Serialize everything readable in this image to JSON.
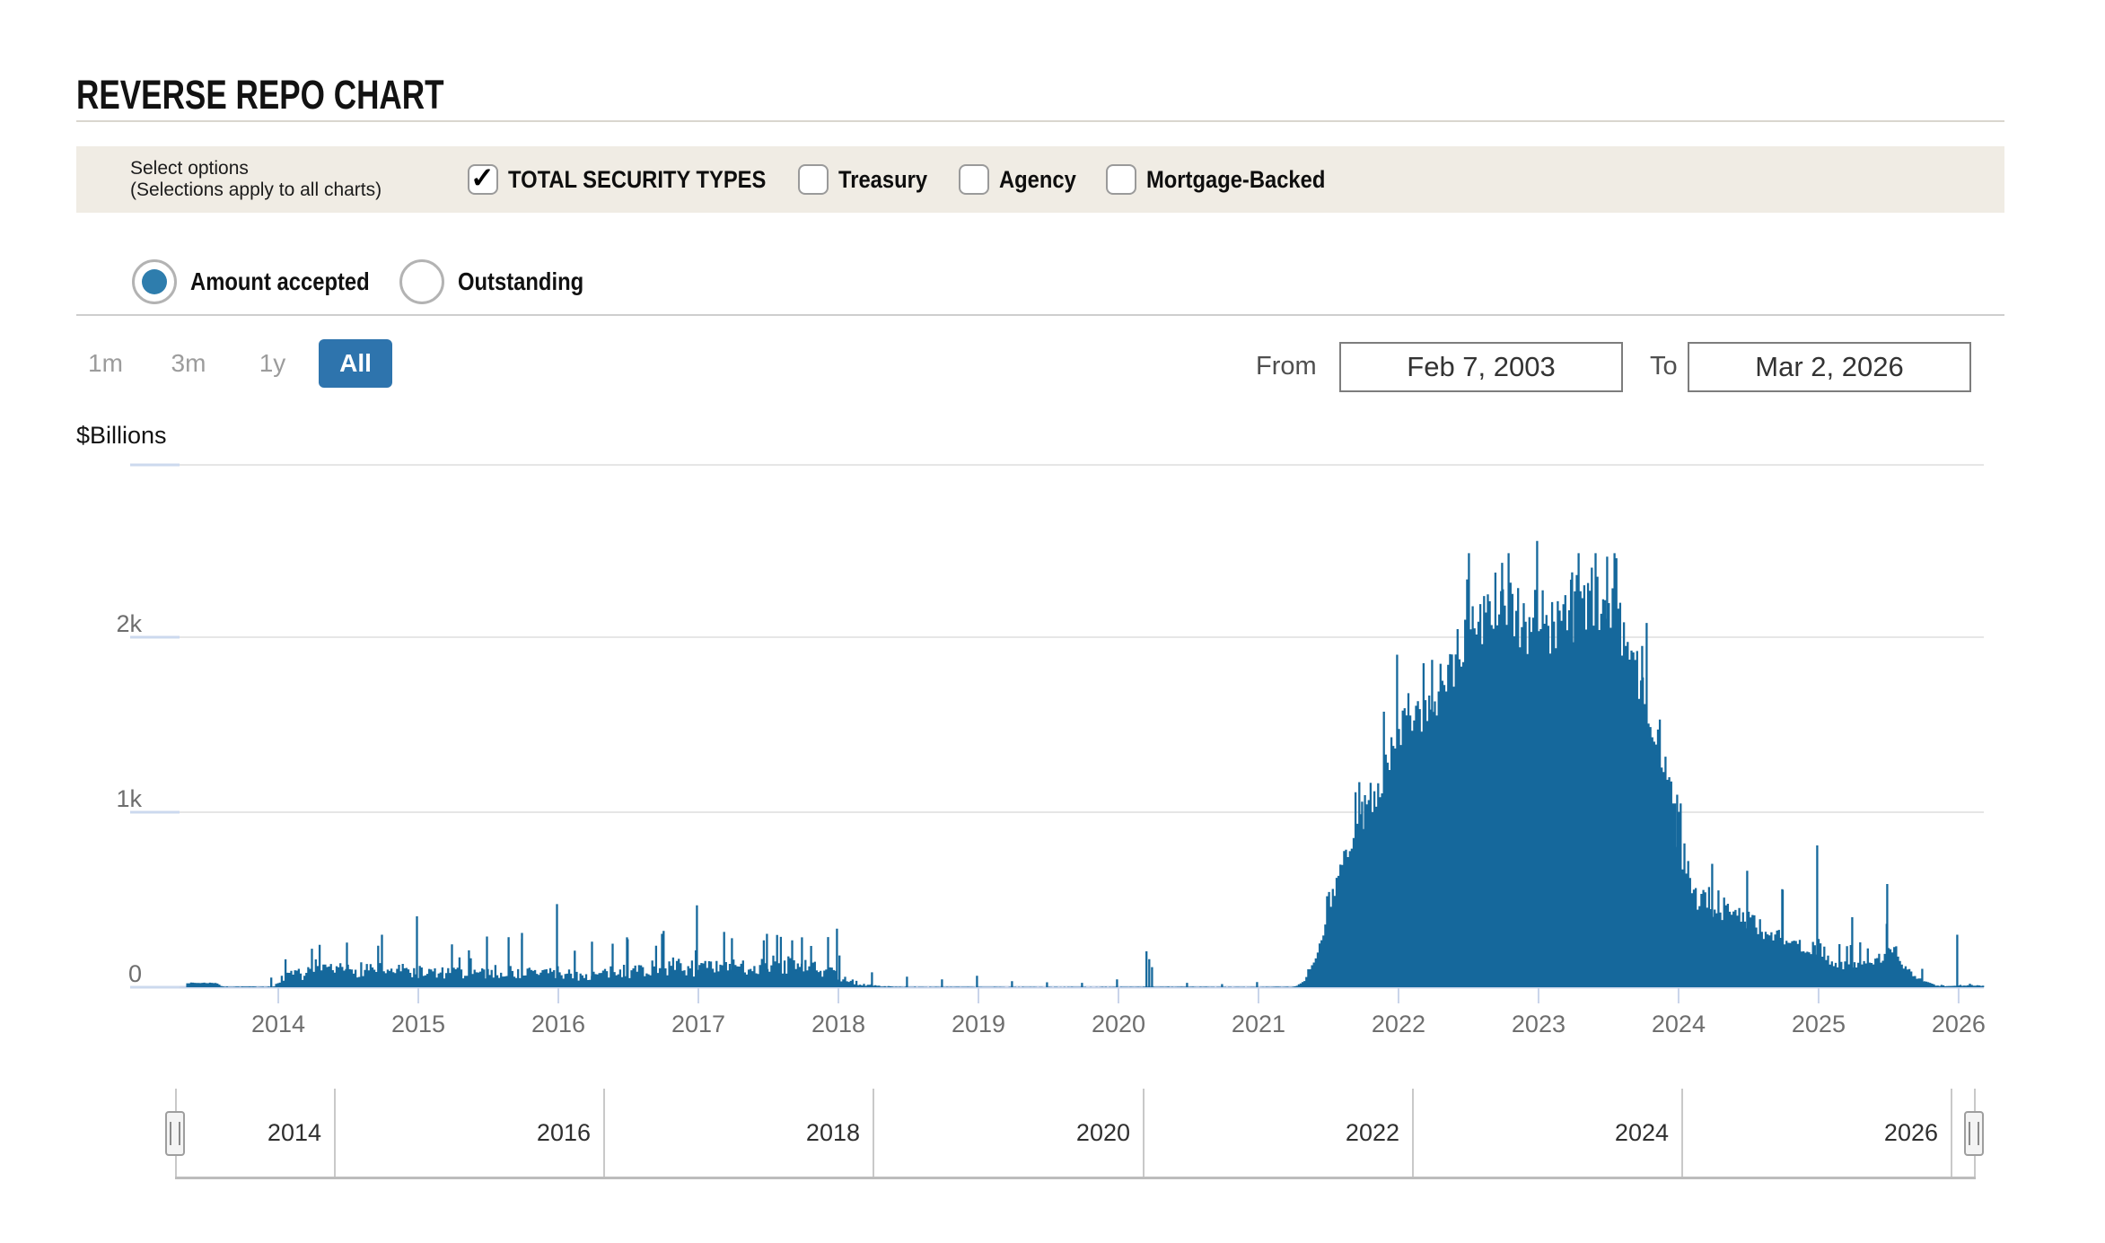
{
  "page": {
    "title": "REVERSE REPO CHART"
  },
  "options_bar": {
    "label_line1": "Select options",
    "label_line2": "(Selections apply to all charts)",
    "checkboxes": [
      {
        "label": "TOTAL SECURITY TYPES",
        "checked": true
      },
      {
        "label": "Treasury",
        "checked": false
      },
      {
        "label": "Agency",
        "checked": false
      },
      {
        "label": "Mortgage-Backed",
        "checked": false
      }
    ]
  },
  "series_toggle": {
    "radios": [
      {
        "label": "Amount accepted",
        "selected": true
      },
      {
        "label": "Outstanding",
        "selected": false
      }
    ]
  },
  "range_buttons": [
    {
      "label": "1m",
      "active": false
    },
    {
      "label": "3m",
      "active": false
    },
    {
      "label": "1y",
      "active": false
    },
    {
      "label": "All",
      "active": true
    }
  ],
  "date_range": {
    "from_label": "From",
    "from_value": "Feb 7, 2003",
    "to_label": "To",
    "to_value": "Mar 2, 2026"
  },
  "colors": {
    "bar_blue": "#15689c",
    "accent_blue": "#2e74ad",
    "radio_blue": "#2e7dad",
    "axis_line": "#c9d4ea",
    "grid_gray": "#e6e6e6",
    "grid_blue_seg": "#ccd9ee",
    "options_bar_bg": "#f0ece4",
    "label_gray": "#6e6e6e"
  },
  "chart_data": {
    "type": "bar",
    "title": "",
    "ylabel": "$Billions",
    "units": "$Billions",
    "ylim": [
      0,
      2990
    ],
    "x_range": [
      2012.942,
      2026.18
    ],
    "grid": true,
    "y_ticks": [
      {
        "value": 0,
        "label": "0"
      },
      {
        "value": 1000,
        "label": "1k"
      },
      {
        "value": 2000,
        "label": "2k"
      }
    ],
    "x_ticks": [
      2014,
      2015,
      2016,
      2017,
      2018,
      2019,
      2020,
      2021,
      2022,
      2023,
      2024,
      2025,
      2026
    ],
    "envelope": [
      [
        2013.35,
        25
      ],
      [
        2013.56,
        25
      ],
      [
        2013.6,
        4
      ],
      [
        2013.97,
        4
      ],
      [
        2014.02,
        50
      ],
      [
        2014.1,
        75
      ],
      [
        2014.3,
        95
      ],
      [
        2014.5,
        105
      ],
      [
        2014.65,
        120
      ],
      [
        2014.8,
        110
      ],
      [
        2015.0,
        95
      ],
      [
        2015.2,
        85
      ],
      [
        2015.4,
        92
      ],
      [
        2015.6,
        96
      ],
      [
        2015.8,
        90
      ],
      [
        2016.0,
        92
      ],
      [
        2016.2,
        68
      ],
      [
        2016.4,
        92
      ],
      [
        2016.6,
        112
      ],
      [
        2016.8,
        128
      ],
      [
        2017.0,
        118
      ],
      [
        2017.2,
        112
      ],
      [
        2017.4,
        135
      ],
      [
        2017.6,
        140
      ],
      [
        2017.8,
        115
      ],
      [
        2017.95,
        92
      ],
      [
        2018.05,
        45
      ],
      [
        2018.2,
        12
      ],
      [
        2018.4,
        3
      ],
      [
        2019.0,
        2
      ],
      [
        2019.5,
        2
      ],
      [
        2020.0,
        2
      ],
      [
        2020.3,
        3
      ],
      [
        2021.0,
        2
      ],
      [
        2021.25,
        3
      ],
      [
        2021.33,
        35
      ],
      [
        2021.42,
        190
      ],
      [
        2021.5,
        430
      ],
      [
        2021.58,
        670
      ],
      [
        2021.67,
        820
      ],
      [
        2021.75,
        950
      ],
      [
        2021.83,
        1080
      ],
      [
        2021.92,
        1260
      ],
      [
        2022.0,
        1480
      ],
      [
        2022.08,
        1570
      ],
      [
        2022.17,
        1620
      ],
      [
        2022.25,
        1690
      ],
      [
        2022.33,
        1780
      ],
      [
        2022.42,
        1950
      ],
      [
        2022.5,
        2070
      ],
      [
        2022.58,
        2150
      ],
      [
        2022.67,
        2210
      ],
      [
        2022.75,
        2240
      ],
      [
        2022.83,
        2160
      ],
      [
        2022.92,
        2110
      ],
      [
        2023.0,
        2170
      ],
      [
        2023.08,
        2070
      ],
      [
        2023.17,
        2120
      ],
      [
        2023.25,
        2170
      ],
      [
        2023.33,
        2220
      ],
      [
        2023.42,
        2270
      ],
      [
        2023.5,
        2190
      ],
      [
        2023.58,
        2080
      ],
      [
        2023.67,
        1920
      ],
      [
        2023.75,
        1750
      ],
      [
        2023.83,
        1520
      ],
      [
        2023.92,
        1270
      ],
      [
        2024.0,
        940
      ],
      [
        2024.08,
        610
      ],
      [
        2024.17,
        520
      ],
      [
        2024.25,
        490
      ],
      [
        2024.33,
        450
      ],
      [
        2024.42,
        425
      ],
      [
        2024.5,
        390
      ],
      [
        2024.58,
        345
      ],
      [
        2024.67,
        310
      ],
      [
        2024.75,
        290
      ],
      [
        2024.83,
        245
      ],
      [
        2024.92,
        210
      ],
      [
        2025.0,
        235
      ],
      [
        2025.08,
        160
      ],
      [
        2025.17,
        125
      ],
      [
        2025.25,
        135
      ],
      [
        2025.33,
        148
      ],
      [
        2025.42,
        162
      ],
      [
        2025.5,
        195
      ],
      [
        2025.55,
        235
      ],
      [
        2025.6,
        140
      ],
      [
        2025.67,
        75
      ],
      [
        2025.75,
        35
      ],
      [
        2025.83,
        12
      ],
      [
        2025.9,
        5
      ],
      [
        2026.0,
        9
      ],
      [
        2026.1,
        12
      ],
      [
        2026.18,
        8
      ]
    ],
    "spikes": [
      [
        2013.95,
        55
      ],
      [
        2014.24,
        220
      ],
      [
        2014.49,
        255
      ],
      [
        2014.74,
        300
      ],
      [
        2014.99,
        405
      ],
      [
        2015.24,
        245
      ],
      [
        2015.49,
        290
      ],
      [
        2015.74,
        310
      ],
      [
        2015.99,
        475
      ],
      [
        2016.24,
        260
      ],
      [
        2016.49,
        285
      ],
      [
        2016.74,
        305
      ],
      [
        2016.99,
        468
      ],
      [
        2017.24,
        280
      ],
      [
        2017.49,
        305
      ],
      [
        2017.74,
        285
      ],
      [
        2017.99,
        335
      ],
      [
        2018.24,
        85
      ],
      [
        2018.49,
        60
      ],
      [
        2018.74,
        45
      ],
      [
        2018.99,
        65
      ],
      [
        2019.24,
        35
      ],
      [
        2019.49,
        28
      ],
      [
        2019.74,
        25
      ],
      [
        2019.99,
        45
      ],
      [
        2020.2,
        205
      ],
      [
        2020.22,
        160
      ],
      [
        2020.24,
        115
      ],
      [
        2020.49,
        25
      ],
      [
        2020.74,
        18
      ],
      [
        2020.99,
        30
      ],
      [
        2021.49,
        520
      ],
      [
        2021.74,
        1060
      ],
      [
        2021.99,
        1900
      ],
      [
        2022.24,
        1870
      ],
      [
        2022.49,
        2330
      ],
      [
        2022.74,
        2425
      ],
      [
        2022.99,
        2550
      ],
      [
        2023.24,
        2370
      ],
      [
        2023.49,
        2460
      ],
      [
        2023.74,
        1950
      ],
      [
        2023.99,
        1100
      ],
      [
        2024.24,
        705
      ],
      [
        2024.49,
        665
      ],
      [
        2024.74,
        560
      ],
      [
        2024.99,
        810
      ],
      [
        2025.24,
        400
      ],
      [
        2025.49,
        590
      ],
      [
        2025.74,
        105
      ],
      [
        2025.99,
        300
      ]
    ],
    "navigator": {
      "labels": [
        "2014",
        "2016",
        "2018",
        "2020",
        "2022",
        "2024",
        "2026"
      ]
    }
  }
}
